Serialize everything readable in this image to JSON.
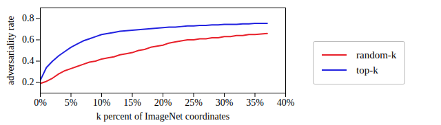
{
  "chart_data": {
    "type": "line",
    "xlabel": "k percent of ImageNet coordinates",
    "ylabel": "adversariality rate",
    "x": [
      0,
      1,
      2,
      3,
      4,
      5,
      6,
      7,
      8,
      9,
      10,
      11,
      12,
      13,
      14,
      15,
      16,
      17,
      18,
      19,
      20,
      21,
      22,
      23,
      24,
      25,
      26,
      27,
      28,
      29,
      30,
      31,
      32,
      33,
      34,
      35,
      36,
      37
    ],
    "series": [
      {
        "name": "random-k",
        "color": "#e8202a",
        "values": [
          0.19,
          0.21,
          0.24,
          0.28,
          0.31,
          0.33,
          0.35,
          0.37,
          0.39,
          0.4,
          0.42,
          0.43,
          0.44,
          0.46,
          0.47,
          0.48,
          0.5,
          0.51,
          0.53,
          0.54,
          0.55,
          0.57,
          0.58,
          0.59,
          0.6,
          0.6,
          0.61,
          0.61,
          0.62,
          0.62,
          0.63,
          0.63,
          0.64,
          0.64,
          0.65,
          0.65,
          0.655,
          0.66
        ]
      },
      {
        "name": "top-k",
        "color": "#2222e0",
        "values": [
          0.22,
          0.34,
          0.4,
          0.45,
          0.49,
          0.53,
          0.56,
          0.59,
          0.61,
          0.63,
          0.65,
          0.66,
          0.67,
          0.68,
          0.685,
          0.69,
          0.695,
          0.7,
          0.705,
          0.71,
          0.715,
          0.72,
          0.72,
          0.725,
          0.73,
          0.73,
          0.735,
          0.735,
          0.74,
          0.74,
          0.745,
          0.745,
          0.745,
          0.75,
          0.75,
          0.755,
          0.755,
          0.755
        ]
      }
    ],
    "xlim": [
      0,
      40
    ],
    "xticks": [
      {
        "value": 0,
        "label": "0%"
      },
      {
        "value": 5,
        "label": "5%"
      },
      {
        "value": 10,
        "label": "10%"
      },
      {
        "value": 15,
        "label": "15%"
      },
      {
        "value": 20,
        "label": "20%"
      },
      {
        "value": 25,
        "label": "25%"
      },
      {
        "value": 30,
        "label": "30%"
      },
      {
        "value": 35,
        "label": "35%"
      },
      {
        "value": 40,
        "label": "40%"
      }
    ],
    "ylim": [
      0.1,
      0.9
    ],
    "yticks": [
      0.2,
      0.4,
      0.6,
      0.8
    ],
    "grid": false,
    "legend": "right"
  }
}
